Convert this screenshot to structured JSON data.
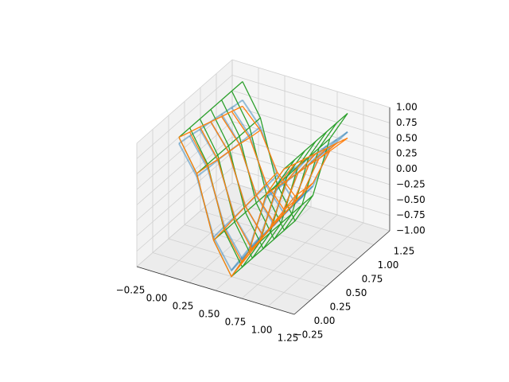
{
  "chart_data": {
    "type": "wireframe3d",
    "x": [
      0,
      0.17,
      0.33,
      0.5,
      0.67,
      0.83,
      1
    ],
    "y": [
      0,
      0.17,
      0.33,
      0.5,
      0.67,
      0.83,
      1
    ],
    "series": [
      {
        "color": "#1f77b4",
        "opacity": 0.45,
        "z": [
          [
            0.9,
            0.45,
            -0.45,
            -0.9,
            -0.45,
            0.45,
            0.9
          ],
          [
            0.87,
            0.43,
            -0.43,
            -0.87,
            -0.43,
            0.43,
            0.87
          ],
          [
            0.83,
            0.42,
            -0.42,
            -0.83,
            -0.42,
            0.42,
            0.83
          ],
          [
            0.8,
            0.4,
            -0.4,
            -0.8,
            -0.4,
            0.4,
            0.8
          ],
          [
            0.77,
            0.38,
            -0.38,
            -0.77,
            -0.38,
            0.38,
            0.77
          ],
          [
            0.73,
            0.37,
            -0.37,
            -0.73,
            -0.37,
            0.37,
            0.73
          ],
          [
            0.7,
            0.35,
            -0.35,
            -0.7,
            -0.35,
            0.35,
            0.7
          ]
        ]
      },
      {
        "color": "#2ca02c",
        "opacity": 1,
        "z": [
          [
            1,
            0.5,
            -0.5,
            -1,
            -0.5,
            0.5,
            1
          ],
          [
            1,
            0.5,
            -0.5,
            -1,
            -0.5,
            0.5,
            1
          ],
          [
            1,
            0.5,
            -0.5,
            -1,
            -0.5,
            0.5,
            1
          ],
          [
            1,
            0.5,
            -0.5,
            -1,
            -0.5,
            0.5,
            1
          ],
          [
            1,
            0.5,
            -0.5,
            -1,
            -0.5,
            0.5,
            1
          ],
          [
            1,
            0.5,
            -0.5,
            -1,
            -0.5,
            0.5,
            1
          ],
          [
            1,
            0.5,
            -0.5,
            -1,
            -0.5,
            0.5,
            1
          ]
        ]
      },
      {
        "color": "#ff7f0e",
        "opacity": 1,
        "z": [
          [
            1,
            0.5,
            -0.5,
            -1,
            -0.5,
            0.5,
            1
          ],
          [
            0.93,
            0.47,
            -0.47,
            -0.93,
            -0.47,
            0.47,
            0.93
          ],
          [
            0.87,
            0.43,
            -0.43,
            -0.87,
            -0.43,
            0.43,
            0.87
          ],
          [
            0.8,
            0.4,
            -0.4,
            -0.8,
            -0.4,
            0.4,
            0.8
          ],
          [
            0.73,
            0.37,
            -0.37,
            -0.73,
            -0.37,
            0.37,
            0.73
          ],
          [
            0.67,
            0.33,
            -0.33,
            -0.67,
            -0.33,
            0.33,
            0.67
          ],
          [
            0.6,
            0.3,
            -0.3,
            -0.6,
            -0.3,
            0.3,
            0.6
          ]
        ]
      }
    ],
    "xlim": [
      -0.25,
      1.25
    ],
    "ylim": [
      -0.25,
      1.25
    ],
    "zlim": [
      -1,
      1
    ],
    "xticks": [
      {
        "value": -0.25,
        "label": "−0.25"
      },
      {
        "value": 0,
        "label": "0.00"
      },
      0.25,
      {
        "value": 0.5,
        "label": "0.50"
      },
      0.75,
      {
        "value": 1,
        "label": "1.00"
      },
      1.25
    ],
    "yticks": [
      {
        "value": -0.25,
        "label": "−0.25"
      },
      {
        "value": 0,
        "label": "0.00"
      },
      0.25,
      {
        "value": 0.5,
        "label": "0.50"
      },
      0.75,
      {
        "value": 1,
        "label": "1.00"
      },
      1.25
    ],
    "zticks": [
      {
        "value": -1,
        "label": "−1.00"
      },
      {
        "value": -0.75,
        "label": "−0.75"
      },
      {
        "value": -0.5,
        "label": "−0.50"
      },
      {
        "value": -0.25,
        "label": "−0.25"
      },
      {
        "value": 0,
        "label": "0.00"
      },
      0.25,
      {
        "value": 0.5,
        "label": "0.50"
      },
      0.75,
      {
        "value": 1,
        "label": "1.00"
      }
    ],
    "grid": true
  }
}
